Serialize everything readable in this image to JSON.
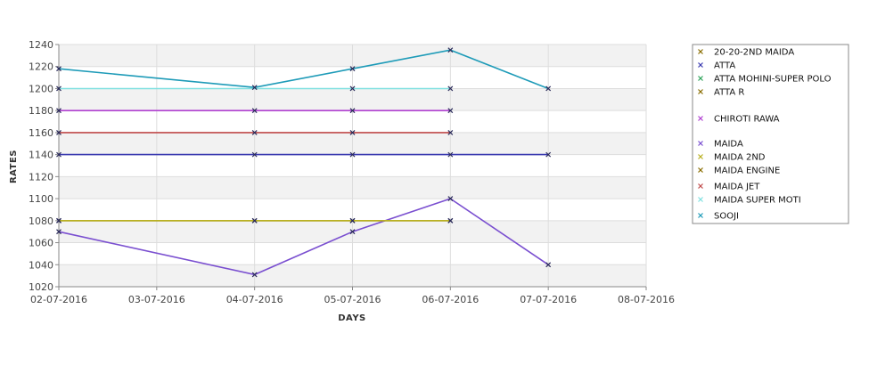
{
  "chart_data": {
    "type": "line",
    "xlabel": "DAYS",
    "ylabel": "RATES",
    "x_ticks": [
      "02-07-2016",
      "03-07-2016",
      "04-07-2016",
      "05-07-2016",
      "06-07-2016",
      "07-07-2016",
      "08-07-2016"
    ],
    "xlim": [
      "02-07-2016",
      "08-07-2016"
    ],
    "ylim": [
      1020,
      1240
    ],
    "y_ticks": [
      1020,
      1040,
      1060,
      1080,
      1100,
      1120,
      1140,
      1160,
      1180,
      1200,
      1220,
      1240
    ],
    "grid": true,
    "legend_position": "right",
    "series": [
      {
        "name": "20-20-2ND MAIDA",
        "color": "#8a6d00",
        "x": [
          "02-07-2016",
          "04-07-2016",
          "05-07-2016",
          "06-07-2016"
        ],
        "y": [
          1080,
          1080,
          1080,
          1080
        ]
      },
      {
        "name": "ATTA",
        "color": "#3a3ab0",
        "x": [
          "02-07-2016",
          "04-07-2016",
          "05-07-2016",
          "06-07-2016",
          "07-07-2016"
        ],
        "y": [
          1140,
          1140,
          1140,
          1140,
          1140
        ]
      },
      {
        "name": "ATTA MOHINI-SUPER POLO",
        "color": "#2fa35a",
        "x": [],
        "y": []
      },
      {
        "name": "ATTA R",
        "color": "#8a6d00",
        "x": [],
        "y": []
      },
      {
        "name": "CHIROTI RAWA",
        "color": "#b040d0",
        "x": [
          "02-07-2016",
          "04-07-2016",
          "05-07-2016",
          "06-07-2016"
        ],
        "y": [
          1180,
          1180,
          1180,
          1180
        ]
      },
      {
        "name": "MAIDA",
        "color": "#7a4fd0",
        "x": [
          "02-07-2016",
          "04-07-2016",
          "05-07-2016",
          "06-07-2016",
          "07-07-2016"
        ],
        "y": [
          1070,
          1031,
          1070,
          1100,
          1040
        ]
      },
      {
        "name": "MAIDA 2ND",
        "color": "#b8b020",
        "x": [
          "02-07-2016",
          "04-07-2016",
          "05-07-2016",
          "06-07-2016"
        ],
        "y": [
          1080,
          1080,
          1080,
          1080
        ]
      },
      {
        "name": "MAIDA ENGINE",
        "color": "#8a6d00",
        "x": [],
        "y": []
      },
      {
        "name": "MAIDA JET",
        "color": "#c04a4a",
        "x": [
          "02-07-2016",
          "04-07-2016",
          "05-07-2016",
          "06-07-2016"
        ],
        "y": [
          1160,
          1160,
          1160,
          1160
        ]
      },
      {
        "name": "MAIDA SUPER MOTI",
        "color": "#7fe0e0",
        "x": [
          "02-07-2016",
          "05-07-2016",
          "06-07-2016"
        ],
        "y": [
          1200,
          1200,
          1200
        ]
      },
      {
        "name": "SOOJI",
        "color": "#1e9bb8",
        "x": [
          "02-07-2016",
          "04-07-2016",
          "05-07-2016",
          "06-07-2016",
          "07-07-2016"
        ],
        "y": [
          1218,
          1201,
          1218,
          1235,
          1200
        ]
      }
    ]
  }
}
